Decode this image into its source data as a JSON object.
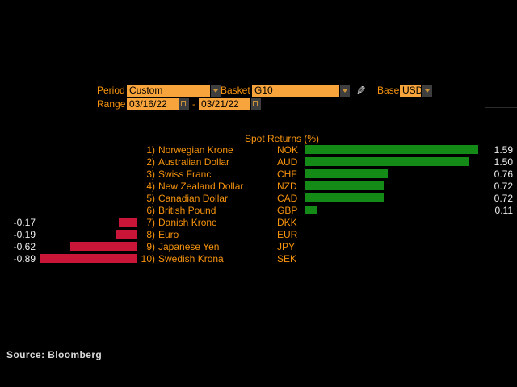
{
  "toolbar": {
    "period": {
      "label": "Period",
      "value": "Custom"
    },
    "basket": {
      "label": "Basket",
      "value": "G10"
    },
    "base": {
      "label": "Base",
      "value": "USD"
    },
    "range": {
      "label": "Range",
      "start": "03/16/22",
      "separator": "-",
      "end": "03/21/22"
    },
    "edit_icon": "pencil-icon",
    "dropdown_icon": "chevron-down-icon",
    "date_icon": "calendar-icon"
  },
  "chart_data": {
    "type": "bar",
    "orientation": "horizontal",
    "title": "Spot Returns (%)",
    "xlabel": "",
    "ylabel": "",
    "value_axis_range": [
      -1.05,
      1.9
    ],
    "grid": false,
    "legend": false,
    "positive_color": "#148A17",
    "negative_color": "#C91638",
    "rows": [
      {
        "rank": "1)",
        "name": "Norwegian Krone",
        "ticker": "NOK",
        "value": 1.59,
        "label": "1.59"
      },
      {
        "rank": "2)",
        "name": "Australian Dollar",
        "ticker": "AUD",
        "value": 1.5,
        "label": "1.50"
      },
      {
        "rank": "3)",
        "name": "Swiss Franc",
        "ticker": "CHF",
        "value": 0.76,
        "label": "0.76"
      },
      {
        "rank": "4)",
        "name": "New Zealand Dollar",
        "ticker": "NZD",
        "value": 0.72,
        "label": "0.72"
      },
      {
        "rank": "5)",
        "name": "Canadian Dollar",
        "ticker": "CAD",
        "value": 0.72,
        "label": "0.72"
      },
      {
        "rank": "6)",
        "name": "British Pound",
        "ticker": "GBP",
        "value": 0.11,
        "label": "0.11"
      },
      {
        "rank": "7)",
        "name": "Danish Krone",
        "ticker": "DKK",
        "value": -0.17,
        "label": "-0.17"
      },
      {
        "rank": "8)",
        "name": "Euro",
        "ticker": "EUR",
        "value": -0.19,
        "label": "-0.19"
      },
      {
        "rank": "9)",
        "name": "Japanese Yen",
        "ticker": "JPY",
        "value": -0.62,
        "label": "-0.62"
      },
      {
        "rank": "10)",
        "name": "Swedish Krona",
        "ticker": "SEK",
        "value": -0.89,
        "label": "-0.89"
      }
    ]
  },
  "source": "Source: Bloomberg",
  "colors": {
    "background": "#000000",
    "accent_orange": "#F7930D",
    "field_orange": "#F8A43C",
    "button_gray": "#3E3E3E",
    "text_white": "#F0F0F0",
    "source_gray": "#D9D9D9"
  }
}
